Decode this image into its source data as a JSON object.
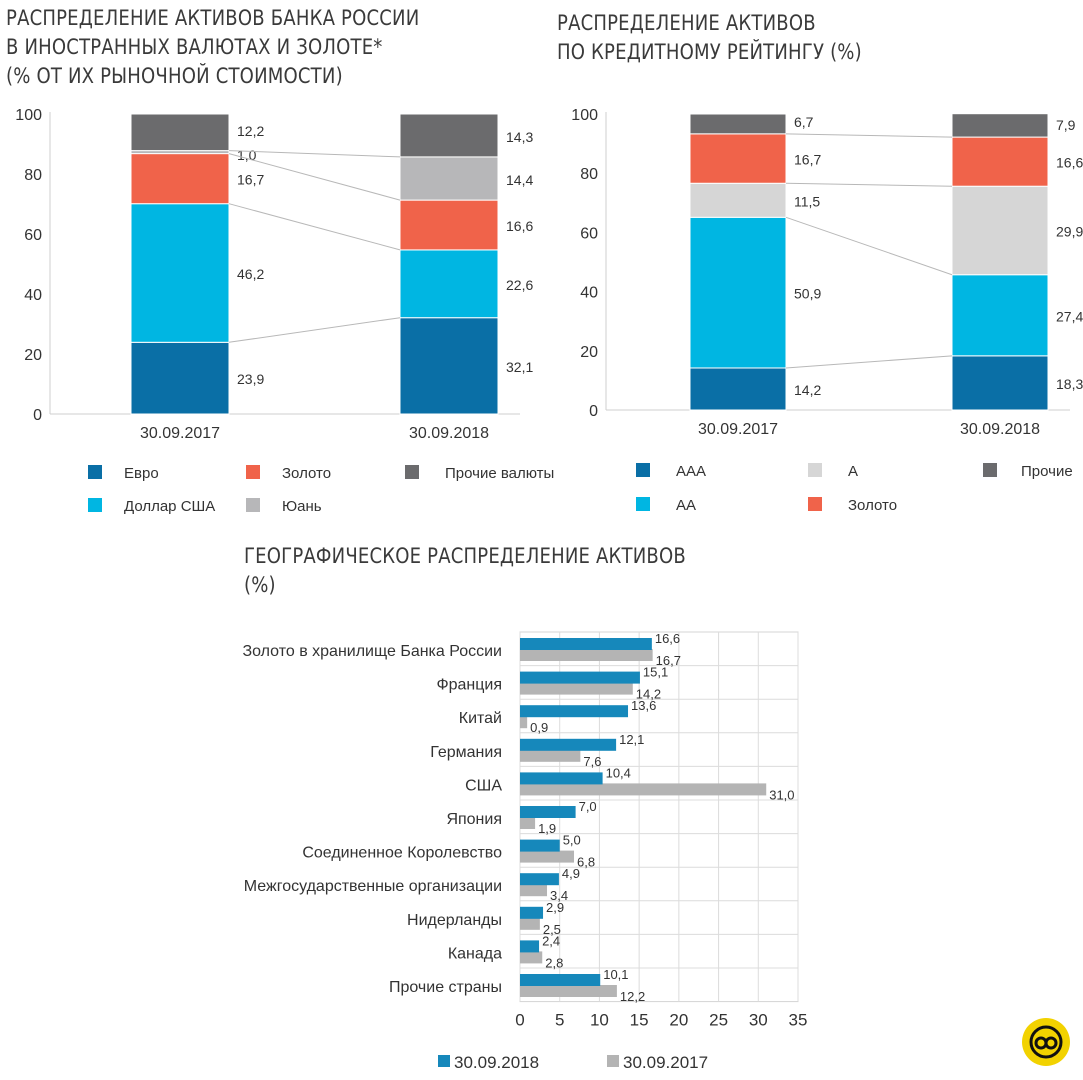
{
  "titles": {
    "t1": [
      "РАСПРЕДЕЛЕНИЕ АКТИВОВ БАНКА РОССИИ",
      "В ИНОСТРАННЫХ ВАЛЮТАХ И ЗОЛОТЕ*",
      "(% ОТ ИХ РЫНОЧНОЙ СТОИМОСТИ)"
    ],
    "t2": [
      "РАСПРЕДЕЛЕНИЕ АКТИВОВ",
      "ПО КРЕДИТНОМУ РЕЙТИНГУ (%)"
    ],
    "t3": [
      "ГЕОГРАФИЧЕСКОЕ РАСПРЕДЕЛЕНИЕ АКТИВОВ",
      "(%)"
    ]
  },
  "colors": {
    "dark_blue": "#0a6fa6",
    "light_blue": "#00b6e2",
    "orange": "#f0634a",
    "light_gray": "#d6d6d6",
    "mid_gray": "#b7b7b9",
    "dark_gray": "#6b6b6d",
    "geo_2018": "#1688bb",
    "geo_2017": "#b4b4b4",
    "logo": "#f2d200"
  },
  "chart_data": [
    {
      "type": "bar",
      "stacked": true,
      "title": "РАСПРЕДЕЛЕНИЕ АКТИВОВ БАНКА РОССИИ В ИНОСТРАННЫХ ВАЛЮТАХ И ЗОЛОТЕ* (% ОТ ИХ РЫНОЧНОЙ СТОИМОСТИ)",
      "categories": [
        "30.09.2017",
        "30.09.2018"
      ],
      "ylim": [
        0,
        100
      ],
      "yticks": [
        0,
        20,
        40,
        60,
        80,
        100
      ],
      "legend_position": "bottom",
      "series": [
        {
          "name": "Евро",
          "values": [
            23.9,
            32.1
          ],
          "labels": [
            "23,9",
            "32,1"
          ],
          "color": "#0a6fa6"
        },
        {
          "name": "Доллар США",
          "values": [
            46.2,
            22.6
          ],
          "labels": [
            "46,2",
            "22,6"
          ],
          "color": "#00b6e2"
        },
        {
          "name": "Золото",
          "values": [
            16.7,
            16.6
          ],
          "labels": [
            "16,7",
            "16,6"
          ],
          "color": "#f0634a"
        },
        {
          "name": "Юань",
          "values": [
            1.0,
            14.4
          ],
          "labels": [
            "1,0",
            "14,4"
          ],
          "color": "#b7b7b9"
        },
        {
          "name": "Прочие валюты",
          "values": [
            12.2,
            14.3
          ],
          "labels": [
            "12,2",
            "14,3"
          ],
          "color": "#6b6b6d"
        }
      ],
      "legend_order": [
        "Евро",
        "Золото",
        "Прочие валюты",
        "Доллар США",
        "Юань"
      ]
    },
    {
      "type": "bar",
      "stacked": true,
      "title": "РАСПРЕДЕЛЕНИЕ АКТИВОВ ПО КРЕДИТНОМУ РЕЙТИНГУ (%)",
      "categories": [
        "30.09.2017",
        "30.09.2018"
      ],
      "ylim": [
        0,
        100
      ],
      "yticks": [
        0,
        20,
        40,
        60,
        80,
        100
      ],
      "legend_position": "bottom",
      "series": [
        {
          "name": "AAA",
          "values": [
            14.2,
            18.3
          ],
          "labels": [
            "14,2",
            "18,3"
          ],
          "color": "#0a6fa6"
        },
        {
          "name": "AA",
          "values": [
            50.9,
            27.4
          ],
          "labels": [
            "50,9",
            "27,4"
          ],
          "color": "#00b6e2"
        },
        {
          "name": "A",
          "values": [
            11.5,
            29.9
          ],
          "labels": [
            "11,5",
            "29,9"
          ],
          "color": "#d6d6d6"
        },
        {
          "name": "Золото",
          "values": [
            16.7,
            16.6
          ],
          "labels": [
            "16,7",
            "16,6"
          ],
          "color": "#f0634a"
        },
        {
          "name": "Прочие",
          "values": [
            6.7,
            7.9
          ],
          "labels": [
            "6,7",
            "7,9"
          ],
          "color": "#6b6b6d"
        }
      ],
      "legend_order": [
        "AAA",
        "A",
        "Прочие",
        "AA",
        "Золото"
      ]
    },
    {
      "type": "bar",
      "orientation": "horizontal",
      "title": "ГЕОГРАФИЧЕСКОЕ РАСПРЕДЕЛЕНИЕ АКТИВОВ (%)",
      "categories": [
        "Золото в хранилище Банка России",
        "Франция",
        "Китай",
        "Германия",
        "США",
        "Япония",
        "Соединенное Королевство",
        "Межгосударственные организации",
        "Нидерланды",
        "Канада",
        "Прочие страны"
      ],
      "xlim": [
        0,
        35
      ],
      "xticks": [
        0,
        5,
        10,
        15,
        20,
        25,
        30,
        35
      ],
      "grid": true,
      "legend_position": "bottom",
      "series": [
        {
          "name": "30.09.2018",
          "values": [
            16.6,
            15.1,
            13.6,
            12.1,
            10.4,
            7.0,
            5.0,
            4.9,
            2.9,
            2.4,
            10.1
          ],
          "labels": [
            "16,6",
            "15,1",
            "13,6",
            "12,1",
            "10,4",
            "7,0",
            "5,0",
            "4,9",
            "2,9",
            "2,4",
            "10,1"
          ],
          "color": "#1688bb"
        },
        {
          "name": "30.09.2017",
          "values": [
            16.7,
            14.2,
            0.9,
            7.6,
            31.0,
            1.9,
            6.8,
            3.4,
            2.5,
            2.8,
            12.2
          ],
          "labels": [
            "16,7",
            "14,2",
            "0,9",
            "7,6",
            "31,0",
            "1,9",
            "6,8",
            "3,4",
            "2,5",
            "2,8",
            "12,2"
          ],
          "color": "#b4b4b4"
        }
      ]
    }
  ]
}
